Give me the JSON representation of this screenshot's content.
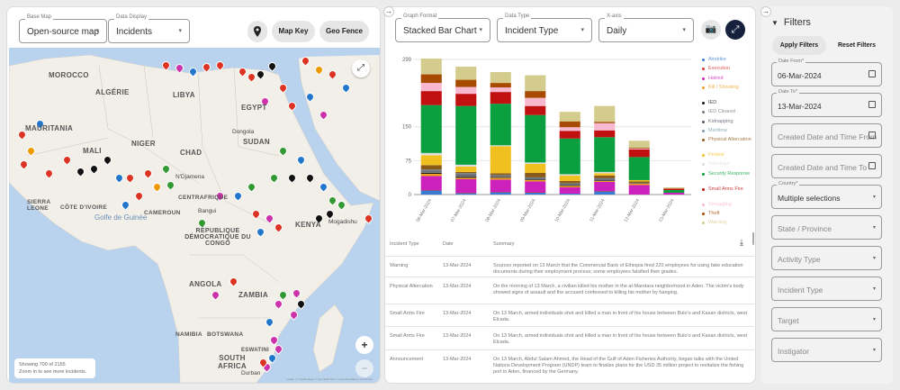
{
  "map_panel": {
    "base_map": {
      "label": "Base Map",
      "value": "Open-source map"
    },
    "data_display": {
      "label": "Data Display",
      "value": "Incidents"
    },
    "location_icon": "map-pin-icon",
    "map_key_label": "Map Key",
    "geo_fence_label": "Geo Fence",
    "countries": [
      "MOROCCO",
      "ALGÉRIE",
      "LIBYA",
      "EGYPT",
      "MAURITANIA",
      "MALI",
      "NIGER",
      "CHAD",
      "SUDAN",
      "SIERRA LEONE",
      "CÔTE D'IVOIRE",
      "CENTRAFRIQUE",
      "CAMEROUN",
      "RÉPUBLIQUE DÉMOCRATIQUE DU CONGO",
      "KENYA",
      "ZAMBIA",
      "ANGOLA",
      "NAMIBIA",
      "BOTSWANA",
      "SOUTH AFRICA",
      "ESWATINI"
    ],
    "cities": [
      "Dongola",
      "N'Djamena",
      "Bangui",
      "Mogadishu",
      "Durban",
      "Golfe de Guinée"
    ],
    "status_line1": "Showing 700 of 2155",
    "status_line2": "Zoom in to see more incidents.",
    "attribution": "Leaflet | © Stadia Maps © OpenMapTiles © OpenStreetMap contributors",
    "zoom_in": "+",
    "zoom_out": "−"
  },
  "chart_panel": {
    "graph_format": {
      "label": "Graph Format",
      "value": "Stacked Bar Chart"
    },
    "data_type": {
      "label": "Data Type",
      "value": "Incident Type"
    },
    "x_axis": {
      "label": "X-axis",
      "value": "Daily"
    },
    "screenshot_icon": "camera-icon",
    "expand_icon": "expand-icon"
  },
  "chart_data": {
    "type": "bar",
    "stacked": true,
    "categories": [
      "06-Mar-2024",
      "07-Mar-2024",
      "08-Mar-2024",
      "09-Mar-2024",
      "10-Mar-2024",
      "11-Mar-2024",
      "12-Mar-2024",
      "13-Mar-2024"
    ],
    "y_ticks": [
      0,
      75,
      150,
      299
    ],
    "ylim": [
      0,
      299
    ],
    "grid": true,
    "legend_position": "right",
    "series": [
      {
        "name": "Airstrike",
        "color": "#3a7bd5",
        "values": [
          9,
          3,
          5,
          4,
          2,
          7,
          0,
          0
        ]
      },
      {
        "name": "Execution",
        "color": "#e03030",
        "values": [
          1,
          1,
          1,
          1,
          0,
          1,
          0,
          0
        ]
      },
      {
        "name": "Hatred",
        "color": "#cc22bb",
        "values": [
          31,
          30,
          27,
          24,
          14,
          20,
          21,
          4
        ]
      },
      {
        "name": "Kill / Shooting",
        "color": "#f0a020",
        "values": [
          5,
          3,
          4,
          3,
          3,
          2,
          3,
          0
        ]
      },
      {
        "name": "IED",
        "color": "#111111",
        "values": [
          2,
          2,
          1,
          1,
          1,
          1,
          0,
          0
        ]
      },
      {
        "name": "IED Cleared",
        "color": "#777777",
        "values": [
          3,
          3,
          2,
          2,
          2,
          2,
          1,
          0
        ]
      },
      {
        "name": "Kidnapping",
        "color": "#555566",
        "values": [
          2,
          3,
          2,
          2,
          2,
          2,
          1,
          0
        ]
      },
      {
        "name": "Maritime",
        "color": "#7799aa",
        "values": [
          2,
          2,
          1,
          1,
          1,
          1,
          0,
          0
        ]
      },
      {
        "name": "Physical Altercation",
        "color": "#8a5a1a",
        "values": [
          10,
          3,
          4,
          10,
          5,
          6,
          3,
          0
        ]
      },
      {
        "name": "Protest",
        "color": "#f0c020",
        "values": [
          22,
          12,
          60,
          20,
          12,
          5,
          3,
          0
        ]
      },
      {
        "name": "Sabotage",
        "color": "#dddddd",
        "values": [
          5,
          4,
          2,
          3,
          3,
          3,
          0,
          0
        ]
      },
      {
        "name": "Security Response",
        "color": "#0aa040",
        "values": [
          106,
          130,
          92,
          105,
          79,
          77,
          51,
          6
        ]
      },
      {
        "name": "Small Arms Fire",
        "color": "#c01010",
        "values": [
          31,
          27,
          26,
          20,
          17,
          15,
          17,
          3
        ]
      },
      {
        "name": "Smuggling",
        "color": "#f8b8d0",
        "values": [
          18,
          15,
          10,
          18,
          8,
          16,
          2,
          0
        ]
      },
      {
        "name": "Theft",
        "color": "#a84a00",
        "values": [
          19,
          16,
          10,
          15,
          13,
          3,
          2,
          0
        ]
      },
      {
        "name": "Warning",
        "color": "#d4cc8c",
        "values": [
          35,
          29,
          24,
          35,
          21,
          35,
          15,
          3
        ]
      }
    ]
  },
  "table": {
    "columns": [
      "Incident Type",
      "Date",
      "Summary"
    ],
    "download_icon": "download-icon",
    "rows": [
      {
        "type": "Warning",
        "date": "13-Mar-2024",
        "summary": "Sources reported on 13 March that the Commercial Bank of Ethiopia fired 220 employees for using fake education documents during their employment process; some employees falsified their grades."
      },
      {
        "type": "Physical Altercation",
        "date": "13-Mar-2024",
        "summary": "On the morning of 13 March, a civilian killed his mother in the al-Mandara neighborhood in Aden. The victim's body showed signs of assault and the accused confessed to killing his mother by hanging."
      },
      {
        "type": "Small Arms Fire",
        "date": "13-Mar-2024",
        "summary": "On 13 March, armed individuals shot and killed a man in front of his house between Bulo'o and Kasan districts, west Elcada."
      },
      {
        "type": "Small Arms Fire",
        "date": "13-Mar-2024",
        "summary": "On 13 March, armed individuals shot and killed a man in front of his house between Bulo'o and Kasan districts, west Elcada."
      },
      {
        "type": "Announcement",
        "date": "13-Mar-2024",
        "summary": "On 13 March, Abdul Salam Ahmed, the Head of the Gulf of Aden Fisheries Authority, began talks with the United Nations Development Program (UNDP) team to finalize plans for the USD 35 million project to revitalize the fishing port in Aden, financed by the Germany."
      }
    ]
  },
  "filters": {
    "title": "Filters",
    "apply_label": "Apply Filters",
    "reset_label": "Reset Filters",
    "date_from": {
      "label": "Date From*",
      "value": "06-Mar-2024"
    },
    "date_to": {
      "label": "Date To*",
      "value": "13-Mar-2024"
    },
    "created_from": {
      "placeholder": "Created Date and Time From"
    },
    "created_to": {
      "placeholder": "Created Date and Time To"
    },
    "country": {
      "label": "Country*",
      "value": "Multiple selections"
    },
    "state": {
      "placeholder": "State / Province"
    },
    "activity": {
      "placeholder": "Activity Type"
    },
    "incident": {
      "placeholder": "Incident Type"
    },
    "target": {
      "placeholder": "Target"
    },
    "instigator": {
      "placeholder": "Instigator"
    }
  }
}
